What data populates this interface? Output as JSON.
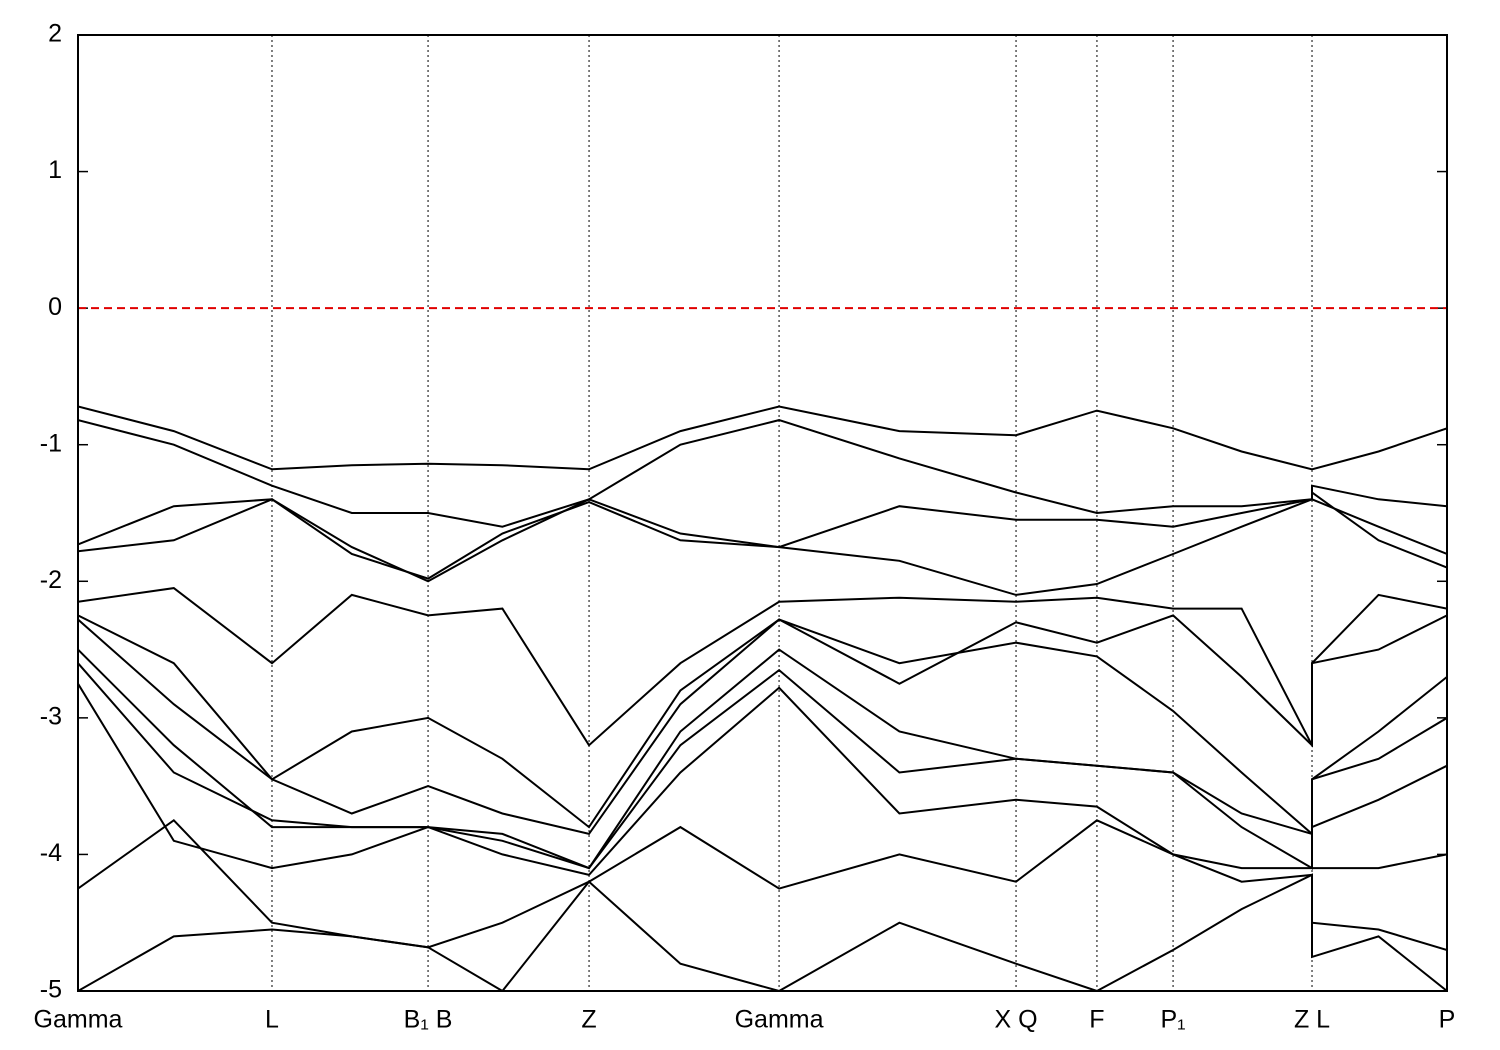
{
  "chart_data": {
    "type": "line",
    "x": [
      0,
      0.07,
      0.1417,
      0.2,
      0.2557,
      0.31,
      0.3733,
      0.44,
      0.5121,
      0.6,
      0.6852,
      0.7443,
      0.7999,
      0.85,
      0.9014,
      0.9014,
      0.95,
      1.0
    ],
    "xlim": [
      0,
      1.0
    ],
    "xticks": [
      {
        "value": 0,
        "label": "Gamma"
      },
      {
        "value": 0.1417,
        "label": "L"
      },
      {
        "value": 0.2557,
        "label": "B₁ B"
      },
      {
        "value": 0.3733,
        "label": "Z"
      },
      {
        "value": 0.5121,
        "label": "Gamma"
      },
      {
        "value": 0.6852,
        "label": "X Q"
      },
      {
        "value": 0.7443,
        "label": "F"
      },
      {
        "value": 0.7999,
        "label": "P₁"
      },
      {
        "value": 0.9014,
        "label": "Z L"
      },
      {
        "value": 1.0,
        "label": "P"
      }
    ],
    "ylim": [
      -5,
      2
    ],
    "yticks": [
      -5,
      -4,
      -3,
      -2,
      -1,
      0,
      1,
      2
    ],
    "x_grid": true,
    "reference_line": {
      "y": 0,
      "color": "#e00000",
      "dashed": true
    },
    "series": [
      {
        "color": "#000000",
        "values": [
          -0.72,
          -0.9,
          -1.18,
          -1.15,
          -1.14,
          -1.15,
          -1.18,
          -0.9,
          -0.72,
          -0.9,
          -0.93,
          -0.75,
          -0.88,
          -1.05,
          -1.18,
          -1.18,
          -1.05,
          -0.88
        ]
      },
      {
        "color": "#000000",
        "values": [
          -0.82,
          -1.0,
          -1.3,
          -1.5,
          -1.5,
          -1.6,
          -1.4,
          -1.0,
          -0.82,
          -1.1,
          -1.35,
          -1.5,
          -1.45,
          -1.45,
          -1.4,
          -1.3,
          -1.4,
          -1.45
        ]
      },
      {
        "color": "#000000",
        "values": [
          -1.73,
          -1.45,
          -1.4,
          -1.75,
          -2.0,
          -1.7,
          -1.4,
          -1.65,
          -1.75,
          -1.45,
          -1.55,
          -1.55,
          -1.6,
          -1.5,
          -1.4,
          -1.4,
          -1.6,
          -1.8
        ]
      },
      {
        "color": "#000000",
        "values": [
          -1.78,
          -1.7,
          -1.4,
          -1.8,
          -1.98,
          -1.65,
          -1.42,
          -1.7,
          -1.75,
          -1.85,
          -2.1,
          -2.02,
          -1.8,
          -1.6,
          -1.4,
          -1.35,
          -1.7,
          -1.9
        ]
      },
      {
        "color": "#000000",
        "values": [
          -2.15,
          -2.05,
          -2.6,
          -2.1,
          -2.25,
          -2.2,
          -3.2,
          -2.6,
          -2.15,
          -2.12,
          -2.15,
          -2.12,
          -2.2,
          -2.2,
          -3.2,
          -2.6,
          -2.1,
          -2.2
        ]
      },
      {
        "color": "#000000",
        "values": [
          -2.25,
          -2.6,
          -3.45,
          -3.1,
          -3.0,
          -3.3,
          -3.8,
          -2.8,
          -2.28,
          -2.75,
          -2.3,
          -2.45,
          -2.25,
          -2.7,
          -3.2,
          -2.6,
          -2.5,
          -2.25
        ]
      },
      {
        "color": "#000000",
        "values": [
          -2.28,
          -2.9,
          -3.45,
          -3.7,
          -3.5,
          -3.7,
          -3.85,
          -2.9,
          -2.28,
          -2.6,
          -2.45,
          -2.55,
          -2.95,
          -3.4,
          -3.85,
          -3.45,
          -3.1,
          -2.7
        ]
      },
      {
        "color": "#000000",
        "values": [
          -2.5,
          -3.2,
          -3.8,
          -3.8,
          -3.8,
          -3.85,
          -4.1,
          -3.1,
          -2.5,
          -3.1,
          -3.3,
          -3.35,
          -3.4,
          -3.7,
          -3.85,
          -3.45,
          -3.3,
          -3.0
        ]
      },
      {
        "color": "#000000",
        "values": [
          -2.6,
          -3.4,
          -3.75,
          -3.8,
          -3.8,
          -3.9,
          -4.1,
          -3.2,
          -2.65,
          -3.4,
          -3.3,
          -3.35,
          -3.4,
          -3.8,
          -4.1,
          -3.8,
          -3.6,
          -3.35
        ]
      },
      {
        "color": "#000000",
        "values": [
          -2.75,
          -3.9,
          -4.1,
          -4.0,
          -3.8,
          -4.0,
          -4.15,
          -3.4,
          -2.78,
          -3.7,
          -3.6,
          -3.65,
          -4.0,
          -4.1,
          -4.1,
          -4.1,
          -4.1,
          -4.0
        ]
      },
      {
        "color": "#000000",
        "values": [
          -4.25,
          -3.75,
          -4.5,
          -4.6,
          -4.68,
          -4.5,
          -4.2,
          -3.8,
          -4.25,
          -4.0,
          -4.2,
          -3.75,
          -4.0,
          -4.2,
          -4.15,
          -4.5,
          -4.55,
          -4.7
        ]
      },
      {
        "color": "#000000",
        "values": [
          -5.0,
          -4.6,
          -4.55,
          -4.6,
          -4.68,
          -5.0,
          -4.2,
          -4.8,
          -5.0,
          -4.5,
          -4.8,
          -5.0,
          -4.7,
          -4.4,
          -4.15,
          -4.75,
          -4.6,
          -5.0
        ]
      }
    ]
  }
}
